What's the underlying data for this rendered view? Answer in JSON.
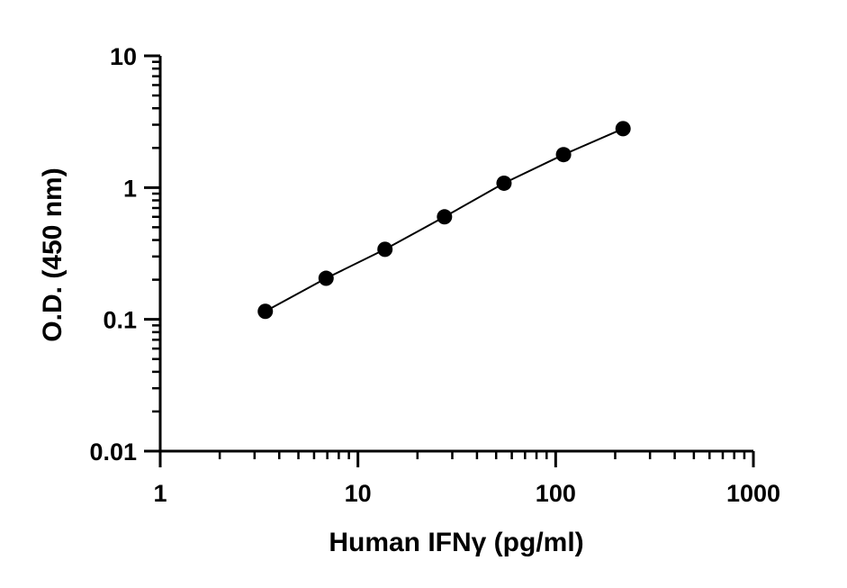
{
  "chart_data": {
    "type": "scatter",
    "xlabel": "Human IFNγ  (pg/ml)",
    "ylabel": "O.D. (450 nm)",
    "x_scale": "log",
    "y_scale": "log",
    "xlim": [
      1,
      1000
    ],
    "ylim": [
      0.01,
      10
    ],
    "x_ticks": [
      {
        "value": 1,
        "label": "1"
      },
      {
        "value": 10,
        "label": "10"
      },
      {
        "value": 100,
        "label": "100"
      },
      {
        "value": 1000,
        "label": "1000"
      }
    ],
    "y_ticks": [
      {
        "value": 0.01,
        "label": "0.01"
      },
      {
        "value": 0.1,
        "label": "0.1"
      },
      {
        "value": 1,
        "label": "1"
      },
      {
        "value": 10,
        "label": "10"
      }
    ],
    "grid": false,
    "fit_line": true,
    "point_color": "#000000",
    "series": [
      {
        "points": [
          {
            "x": 3.4,
            "y": 0.115
          },
          {
            "x": 6.9,
            "y": 0.205
          },
          {
            "x": 13.7,
            "y": 0.34
          },
          {
            "x": 27.4,
            "y": 0.6
          },
          {
            "x": 54.8,
            "y": 1.08
          },
          {
            "x": 109.6,
            "y": 1.78
          },
          {
            "x": 219.2,
            "y": 2.8
          }
        ]
      }
    ]
  }
}
